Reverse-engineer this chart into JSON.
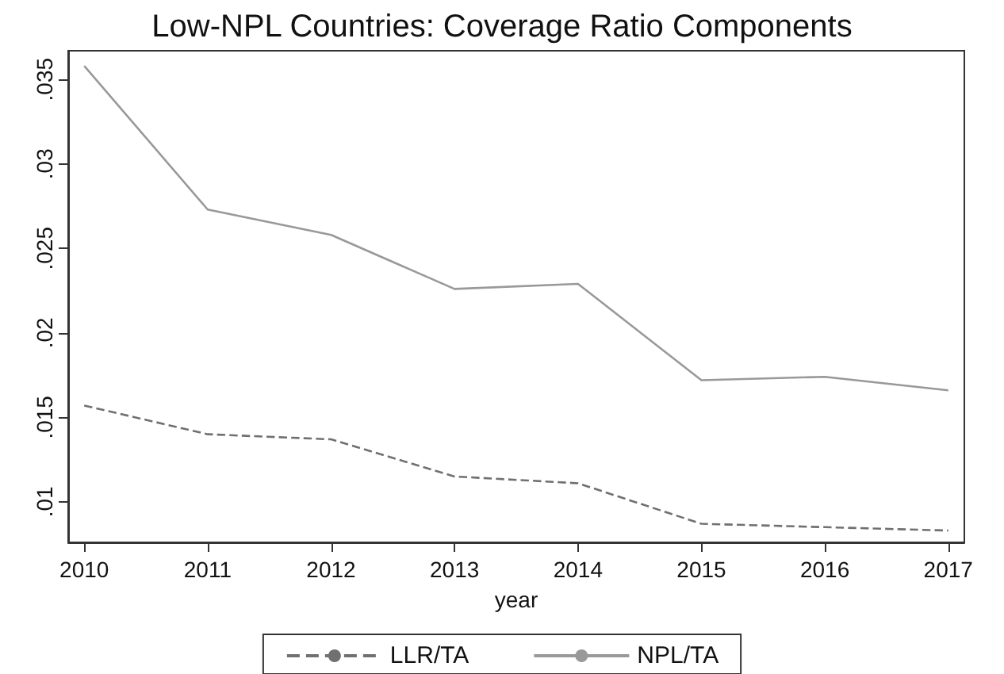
{
  "chart_data": {
    "type": "line",
    "title": "Low-NPL Countries: Coverage Ratio Components",
    "xlabel": "year",
    "x": [
      2010,
      2011,
      2012,
      2013,
      2014,
      2015,
      2016,
      2017
    ],
    "series": [
      {
        "name": "LLR/TA",
        "color": "#707070",
        "line_style": "dashed",
        "values": [
          0.0157,
          0.014,
          0.0137,
          0.0115,
          0.0111,
          0.0087,
          0.0085,
          0.0083
        ]
      },
      {
        "name": "NPL/TA",
        "color": "#999999",
        "line_style": "solid",
        "values": [
          0.0358,
          0.0273,
          0.0258,
          0.0226,
          0.0229,
          0.0172,
          0.0174,
          0.0166
        ]
      }
    ],
    "xlim": [
      2009.87,
      2017.13
    ],
    "xticks": [
      2010,
      2011,
      2012,
      2013,
      2014,
      2015,
      2016,
      2017
    ],
    "ylim": [
      0.0076,
      0.0367
    ],
    "yticks": [
      {
        "value": 0.01,
        "label": ".01"
      },
      {
        "value": 0.015,
        "label": ".015"
      },
      {
        "value": 0.02,
        "label": ".02"
      },
      {
        "value": 0.025,
        "label": ".025"
      },
      {
        "value": 0.03,
        "label": ".03"
      },
      {
        "value": 0.035,
        "label": ".035"
      }
    ],
    "grid": false,
    "legend": "bottom",
    "marker": "none"
  }
}
